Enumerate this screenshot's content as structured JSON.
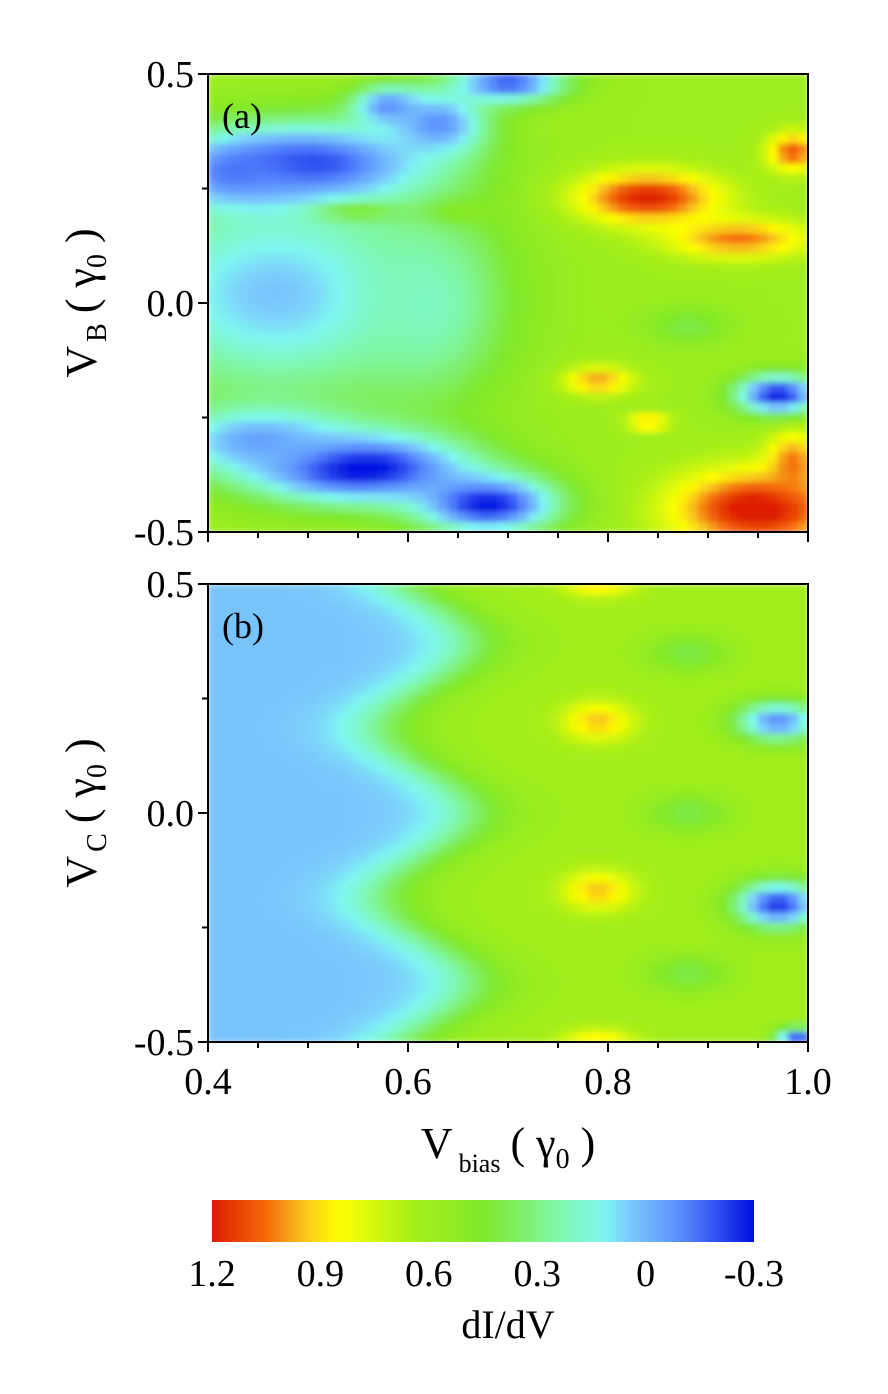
{
  "chart_data": [
    {
      "type": "heatmap",
      "panel_label": "(a)",
      "ylabel": {
        "main": "V",
        "sub": "B",
        "unit_open": "( ",
        "unit_symbol": "γ",
        "unit_sub": "0",
        "unit_close": " )"
      },
      "xlabel": "",
      "xlim": [
        0.4,
        1.0
      ],
      "ylim": [
        -0.5,
        0.5
      ],
      "yticks": [
        "0.5",
        "0.0",
        "-0.5"
      ],
      "background_value": 0.6,
      "blobs": [
        {
          "x": 0.5,
          "y": 0.3,
          "sx": 0.09,
          "sy": 0.065,
          "v": -0.3
        },
        {
          "x": 0.43,
          "y": 0.28,
          "sx": 0.045,
          "sy": 0.045,
          "v": -0.2
        },
        {
          "x": 0.63,
          "y": 0.39,
          "sx": 0.035,
          "sy": 0.05,
          "v": -0.1
        },
        {
          "x": 0.7,
          "y": 0.48,
          "sx": 0.04,
          "sy": 0.03,
          "v": -0.2
        },
        {
          "x": 0.58,
          "y": 0.43,
          "sx": 0.025,
          "sy": 0.03,
          "v": -0.1
        },
        {
          "x": 0.47,
          "y": 0.02,
          "sx": 0.12,
          "sy": 0.17,
          "v": 0.03
        },
        {
          "x": 0.62,
          "y": 0.0,
          "sx": 0.05,
          "sy": 0.14,
          "v": 0.2
        },
        {
          "x": 0.55,
          "y": -0.36,
          "sx": 0.08,
          "sy": 0.055,
          "v": -0.35
        },
        {
          "x": 0.68,
          "y": -0.44,
          "sx": 0.05,
          "sy": 0.045,
          "v": -0.3
        },
        {
          "x": 0.45,
          "y": -0.3,
          "sx": 0.06,
          "sy": 0.05,
          "v": -0.05
        },
        {
          "x": 0.84,
          "y": 0.23,
          "sx": 0.05,
          "sy": 0.04,
          "v": 1.2
        },
        {
          "x": 0.93,
          "y": 0.14,
          "sx": 0.05,
          "sy": 0.03,
          "v": 1.05
        },
        {
          "x": 0.985,
          "y": 0.33,
          "sx": 0.018,
          "sy": 0.03,
          "v": 1.1
        },
        {
          "x": 0.79,
          "y": -0.17,
          "sx": 0.025,
          "sy": 0.022,
          "v": 1.0
        },
        {
          "x": 0.84,
          "y": -0.26,
          "sx": 0.015,
          "sy": 0.012,
          "v": 1.0
        },
        {
          "x": 0.95,
          "y": -0.45,
          "sx": 0.06,
          "sy": 0.06,
          "v": 1.25
        },
        {
          "x": 0.985,
          "y": -0.35,
          "sx": 0.018,
          "sy": 0.05,
          "v": 1.05
        },
        {
          "x": 0.97,
          "y": -0.2,
          "sx": 0.03,
          "sy": 0.03,
          "v": -0.3
        },
        {
          "x": 0.55,
          "y": 0.2,
          "sx": 0.03,
          "sy": 0.015,
          "v": 0.45
        },
        {
          "x": 0.88,
          "y": -0.05,
          "sx": 0.03,
          "sy": 0.03,
          "v": 0.4
        },
        {
          "x": 0.66,
          "y": 0.2,
          "sx": 0.03,
          "sy": 0.02,
          "v": 0.5
        }
      ]
    },
    {
      "type": "heatmap",
      "panel_label": "(b)",
      "ylabel": {
        "main": "V",
        "sub": "C",
        "unit_open": "( ",
        "unit_symbol": "γ",
        "unit_sub": "0",
        "unit_close": " )"
      },
      "xlabel": {
        "main": "V",
        "sub": "bias",
        "unit_open": "( ",
        "unit_symbol": "γ",
        "unit_sub": "0",
        "unit_close": " )"
      },
      "xlim": [
        0.4,
        1.0
      ],
      "ylim": [
        -0.5,
        0.5
      ],
      "xticks": [
        "0.4",
        "0.6",
        "0.8",
        "1.0"
      ],
      "yticks": [
        "0.5",
        "0.0",
        "-0.5"
      ],
      "background_value": 0.6,
      "blobs": [
        {
          "x": 0.79,
          "y": 0.2,
          "sx": 0.025,
          "sy": 0.03,
          "v": 0.95
        },
        {
          "x": 0.79,
          "y": -0.17,
          "sx": 0.025,
          "sy": 0.03,
          "v": 0.95
        },
        {
          "x": 0.79,
          "y": 0.5,
          "sx": 0.025,
          "sy": 0.02,
          "v": 0.9
        },
        {
          "x": 0.79,
          "y": -0.5,
          "sx": 0.025,
          "sy": 0.02,
          "v": 0.9
        },
        {
          "x": 0.97,
          "y": -0.2,
          "sx": 0.03,
          "sy": 0.035,
          "v": -0.25
        },
        {
          "x": 0.97,
          "y": 0.2,
          "sx": 0.03,
          "sy": 0.03,
          "v": -0.1
        },
        {
          "x": 0.99,
          "y": -0.49,
          "sx": 0.015,
          "sy": 0.015,
          "v": -0.2
        },
        {
          "x": 0.88,
          "y": 0.0,
          "sx": 0.03,
          "sy": 0.03,
          "v": 0.4
        },
        {
          "x": 0.88,
          "y": 0.35,
          "sx": 0.03,
          "sy": 0.03,
          "v": 0.4
        },
        {
          "x": 0.88,
          "y": -0.35,
          "sx": 0.03,
          "sy": 0.03,
          "v": 0.4
        }
      ]
    },
    {
      "type": "colorbar",
      "title": "dI/dV",
      "tick_labels": [
        "1.2",
        "0.9",
        "0.6",
        "0.3",
        "0",
        "-0.3"
      ],
      "range": [
        1.2,
        -0.3
      ],
      "stops": [
        {
          "v": 1.2,
          "color": "#dd1c00"
        },
        {
          "v": 1.05,
          "color": "#f56a0a"
        },
        {
          "v": 0.95,
          "color": "#f7c21e"
        },
        {
          "v": 0.85,
          "color": "#ffff00"
        },
        {
          "v": 0.65,
          "color": "#a8ef18"
        },
        {
          "v": 0.45,
          "color": "#7fe82b"
        },
        {
          "v": 0.25,
          "color": "#7ff7a4"
        },
        {
          "v": 0.12,
          "color": "#7ff7f0"
        },
        {
          "v": 0.05,
          "color": "#7ccdfc"
        },
        {
          "v": -0.1,
          "color": "#5a8bff"
        },
        {
          "v": -0.3,
          "color": "#0010e0"
        }
      ]
    }
  ]
}
